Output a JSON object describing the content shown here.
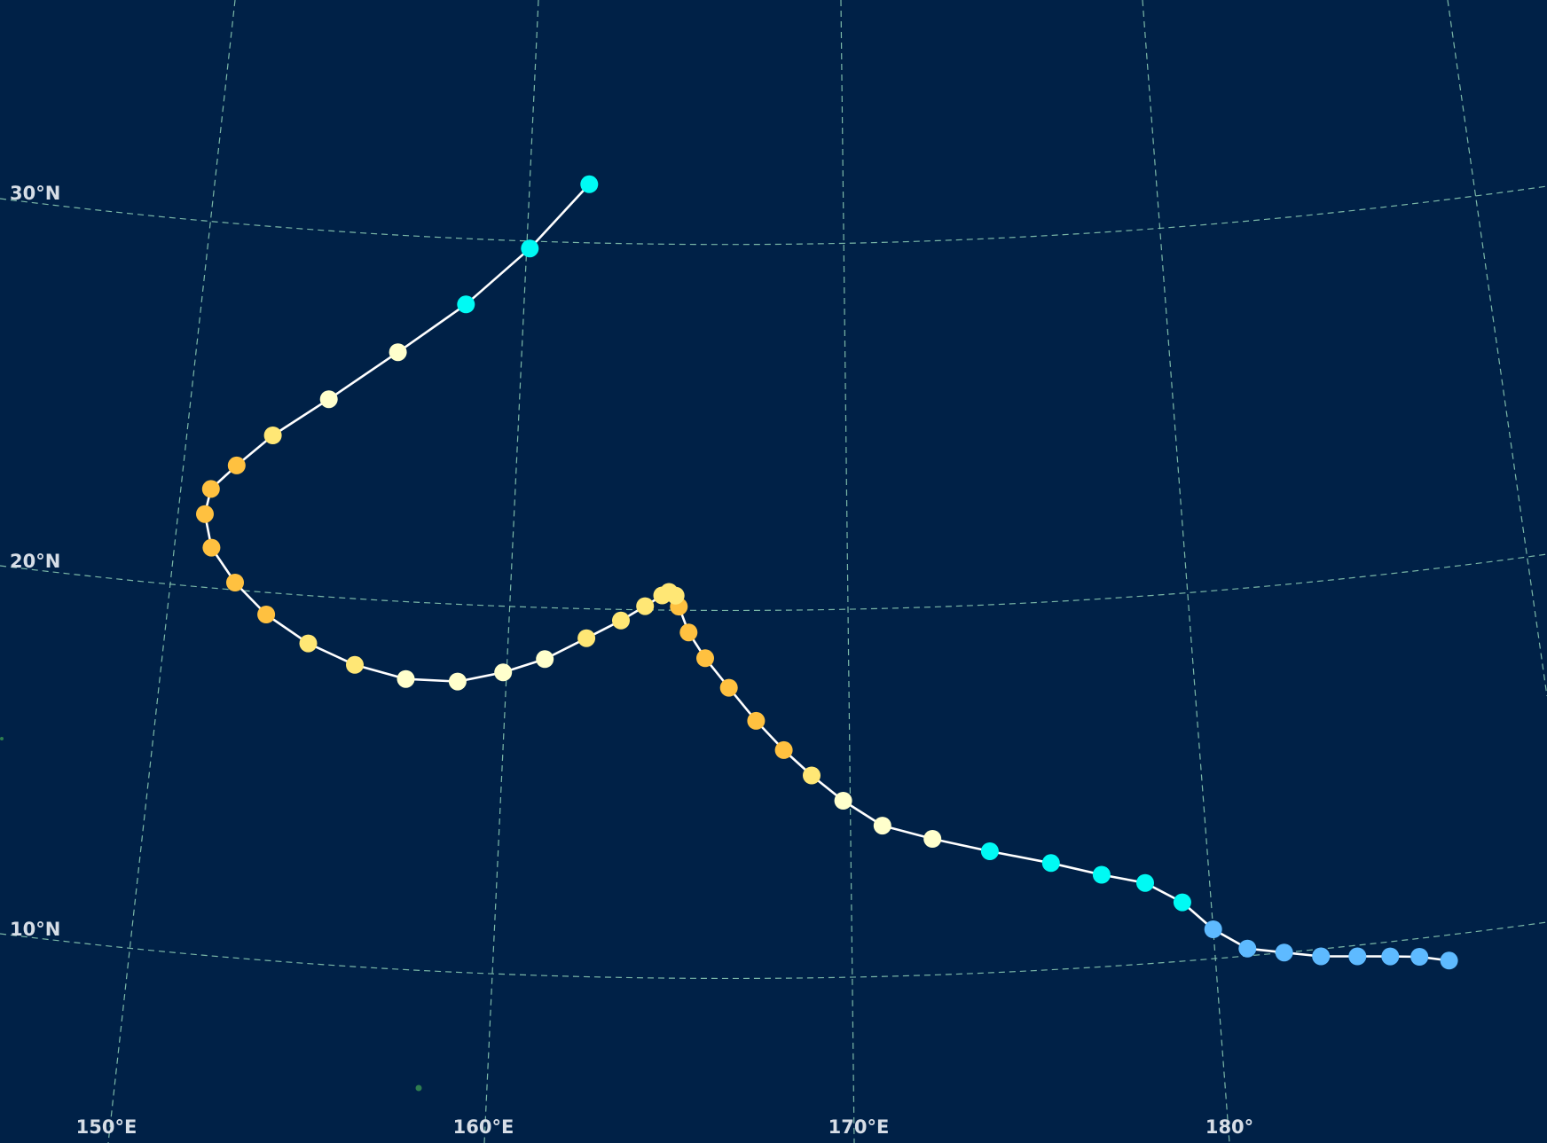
{
  "map": {
    "background_color": "#002147",
    "graticule_color": "#8fd1b8",
    "track_line_color": "#ffffff",
    "lat_labels": [
      "10°N",
      "20°N",
      "30°N"
    ],
    "lon_labels": [
      "150°E",
      "160°E",
      "170°E",
      "180°"
    ]
  },
  "track": {
    "category_colors": {
      "TD": "#5ebaff",
      "TS": "#00faf4",
      "C1": "#ffffcc",
      "C2": "#ffe775",
      "C3": "#ffc140"
    },
    "points": [
      {
        "lon": 186.4,
        "lat": 9.3,
        "cat": "TD"
      },
      {
        "lon": 185.6,
        "lat": 9.5,
        "cat": "TD"
      },
      {
        "lon": 184.8,
        "lat": 9.6,
        "cat": "TD"
      },
      {
        "lon": 183.9,
        "lat": 9.7,
        "cat": "TD"
      },
      {
        "lon": 182.9,
        "lat": 9.8,
        "cat": "TD"
      },
      {
        "lon": 181.9,
        "lat": 10.0,
        "cat": "TD"
      },
      {
        "lon": 180.9,
        "lat": 10.2,
        "cat": "TD"
      },
      {
        "lon": 180.0,
        "lat": 10.8,
        "cat": "TD"
      },
      {
        "lon": 179.2,
        "lat": 11.6,
        "cat": "TS"
      },
      {
        "lon": 178.2,
        "lat": 12.2,
        "cat": "TS"
      },
      {
        "lon": 177.0,
        "lat": 12.5,
        "cat": "TS"
      },
      {
        "lon": 175.6,
        "lat": 12.9,
        "cat": "TS"
      },
      {
        "lon": 173.9,
        "lat": 13.3,
        "cat": "TS"
      },
      {
        "lon": 172.3,
        "lat": 13.7,
        "cat": "C1"
      },
      {
        "lon": 170.9,
        "lat": 14.1,
        "cat": "C1"
      },
      {
        "lon": 169.8,
        "lat": 14.8,
        "cat": "C1"
      },
      {
        "lon": 168.9,
        "lat": 15.5,
        "cat": "C2"
      },
      {
        "lon": 168.1,
        "lat": 16.2,
        "cat": "C3"
      },
      {
        "lon": 167.3,
        "lat": 17.0,
        "cat": "C3"
      },
      {
        "lon": 166.5,
        "lat": 17.9,
        "cat": "C3"
      },
      {
        "lon": 165.8,
        "lat": 18.7,
        "cat": "C3"
      },
      {
        "lon": 165.3,
        "lat": 19.4,
        "cat": "C3"
      },
      {
        "lon": 165.0,
        "lat": 20.1,
        "cat": "C3"
      },
      {
        "lon": 164.9,
        "lat": 20.4,
        "cat": "C2"
      },
      {
        "lon": 164.7,
        "lat": 20.5,
        "cat": "C2"
      },
      {
        "lon": 164.5,
        "lat": 20.4,
        "cat": "C2"
      },
      {
        "lon": 164.0,
        "lat": 20.1,
        "cat": "C2"
      },
      {
        "lon": 163.3,
        "lat": 19.7,
        "cat": "C2"
      },
      {
        "lon": 162.3,
        "lat": 19.2,
        "cat": "C2"
      },
      {
        "lon": 161.1,
        "lat": 18.6,
        "cat": "C1"
      },
      {
        "lon": 159.9,
        "lat": 18.2,
        "cat": "C1"
      },
      {
        "lon": 158.6,
        "lat": 17.9,
        "cat": "C1"
      },
      {
        "lon": 157.1,
        "lat": 17.9,
        "cat": "C1"
      },
      {
        "lon": 155.6,
        "lat": 18.2,
        "cat": "C2"
      },
      {
        "lon": 154.2,
        "lat": 18.7,
        "cat": "C2"
      },
      {
        "lon": 152.9,
        "lat": 19.4,
        "cat": "C3"
      },
      {
        "lon": 151.9,
        "lat": 20.2,
        "cat": "C3"
      },
      {
        "lon": 151.1,
        "lat": 21.1,
        "cat": "C3"
      },
      {
        "lon": 150.8,
        "lat": 22.0,
        "cat": "C3"
      },
      {
        "lon": 150.9,
        "lat": 22.7,
        "cat": "C3"
      },
      {
        "lon": 151.6,
        "lat": 23.4,
        "cat": "C3"
      },
      {
        "lon": 152.6,
        "lat": 24.3,
        "cat": "C2"
      },
      {
        "lon": 154.2,
        "lat": 25.4,
        "cat": "C1"
      },
      {
        "lon": 156.2,
        "lat": 26.8,
        "cat": "C1"
      },
      {
        "lon": 158.2,
        "lat": 28.2,
        "cat": "TS"
      },
      {
        "lon": 160.1,
        "lat": 29.8,
        "cat": "TS"
      },
      {
        "lon": 161.9,
        "lat": 31.6,
        "cat": "TS"
      }
    ]
  }
}
